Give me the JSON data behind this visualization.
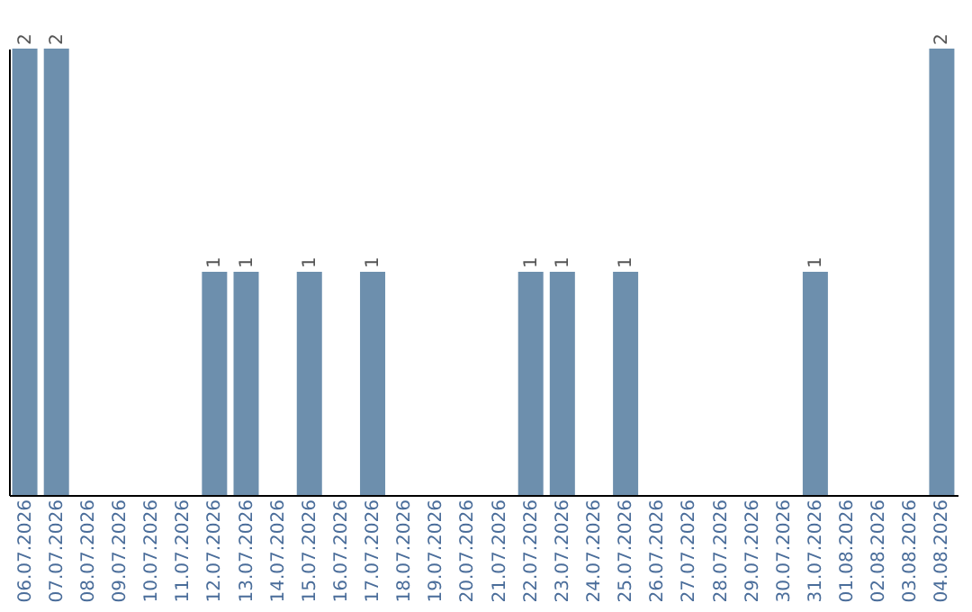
{
  "chart_data": {
    "type": "bar",
    "categories": [
      "06.07.2026",
      "07.07.2026",
      "08.07.2026",
      "09.07.2026",
      "10.07.2026",
      "11.07.2026",
      "12.07.2026",
      "13.07.2026",
      "14.07.2026",
      "15.07.2026",
      "16.07.2026",
      "17.07.2026",
      "18.07.2026",
      "19.07.2026",
      "20.07.2026",
      "21.07.2026",
      "22.07.2026",
      "23.07.2026",
      "24.07.2026",
      "25.07.2026",
      "26.07.2026",
      "27.07.2026",
      "28.07.2026",
      "29.07.2026",
      "30.07.2026",
      "31.07.2026",
      "01.08.2026",
      "02.08.2026",
      "03.08.2026",
      "04.08.2026"
    ],
    "values": [
      2,
      2,
      0,
      0,
      0,
      0,
      1,
      1,
      0,
      1,
      0,
      1,
      0,
      0,
      0,
      0,
      1,
      1,
      0,
      1,
      0,
      0,
      0,
      0,
      0,
      1,
      0,
      0,
      0,
      2
    ],
    "value_labels": [
      "2",
      "2",
      null,
      null,
      null,
      null,
      "1",
      "1",
      null,
      "1",
      null,
      "1",
      null,
      null,
      null,
      null,
      "1",
      "1",
      null,
      "1",
      null,
      null,
      null,
      null,
      null,
      "1",
      null,
      null,
      null,
      "2"
    ],
    "color": "#6d8fad"
  }
}
